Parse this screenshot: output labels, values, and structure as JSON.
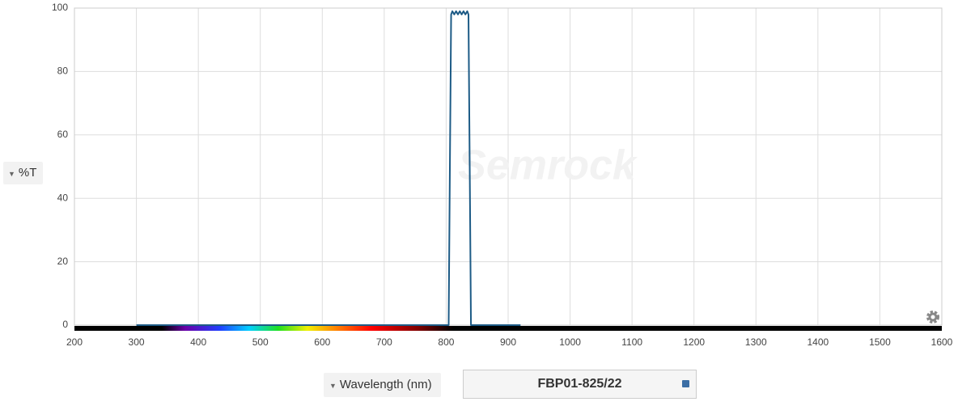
{
  "chart_data": {
    "type": "line",
    "y_label": "%T",
    "x_label": "Wavelength (nm)",
    "watermark": "Semrock",
    "x": [
      300,
      804,
      806,
      808,
      810,
      813,
      816,
      819,
      822,
      825,
      828,
      831,
      834,
      836,
      838,
      840,
      920
    ],
    "series": [
      {
        "name": "FBP01-825/22",
        "color": "#1d5b86",
        "values": [
          0,
          0,
          50,
          98,
          99,
          98,
          99,
          98,
          99,
          98,
          99,
          98,
          99,
          98,
          50,
          0,
          0
        ]
      }
    ],
    "xlim": [
      200,
      1600
    ],
    "xticks": [
      200,
      300,
      400,
      500,
      600,
      700,
      800,
      900,
      1000,
      1100,
      1200,
      1300,
      1400,
      1500,
      1600
    ],
    "ylim": [
      0,
      100
    ],
    "yticks": [
      0,
      20,
      40,
      60,
      80,
      100
    ],
    "grid": true
  }
}
